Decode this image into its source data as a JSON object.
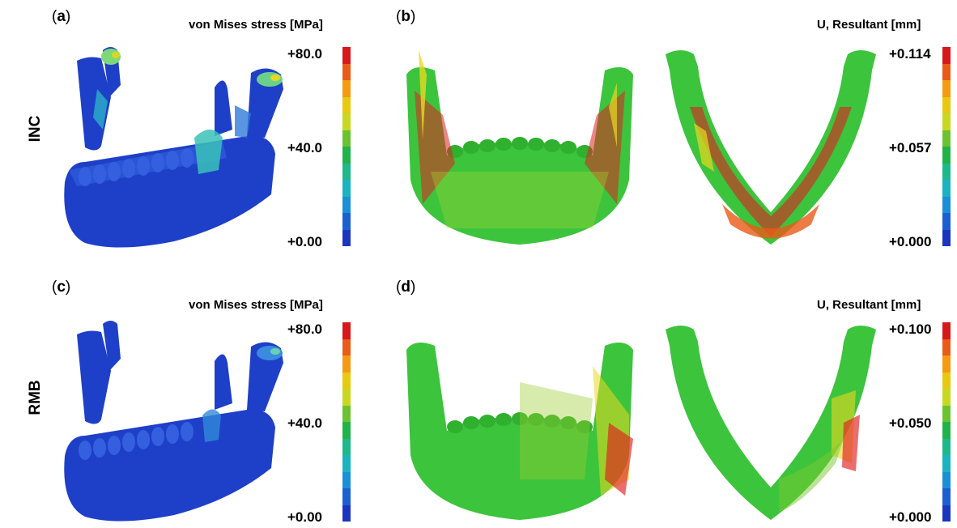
{
  "panels": {
    "a": {
      "label": "a",
      "colorbar_title": "von Mises stress [MPa]",
      "ticks": [
        "+80.0",
        "+40.0",
        "+0.00"
      ]
    },
    "b": {
      "label": "b",
      "colorbar_title": "U, Resultant [mm]",
      "ticks": [
        "+0.114",
        "+0.057",
        "+0.000"
      ]
    },
    "c": {
      "label": "c",
      "colorbar_title": "von Mises stress [MPa]",
      "ticks": [
        "+80.0",
        "+40.0",
        "+0.00"
      ]
    },
    "d": {
      "label": "d",
      "colorbar_title": "U, Resultant [mm]",
      "ticks": [
        "+0.100",
        "+0.050",
        "+0.000"
      ]
    }
  },
  "rows": {
    "top": "INC",
    "bottom": "RMB"
  },
  "colorbar_colors": [
    "#d7191c",
    "#ea5a18",
    "#f59a12",
    "#e6c910",
    "#c8d820",
    "#6cc230",
    "#22b24a",
    "#1fb88a",
    "#1bb3c0",
    "#1a8fd6",
    "#1c5fd0",
    "#1a36c0"
  ],
  "colors": {
    "bone_blue": "#1e3fc8",
    "bone_green": "#3cc43c",
    "red": "#e02020",
    "yellow": "#e8d820"
  }
}
